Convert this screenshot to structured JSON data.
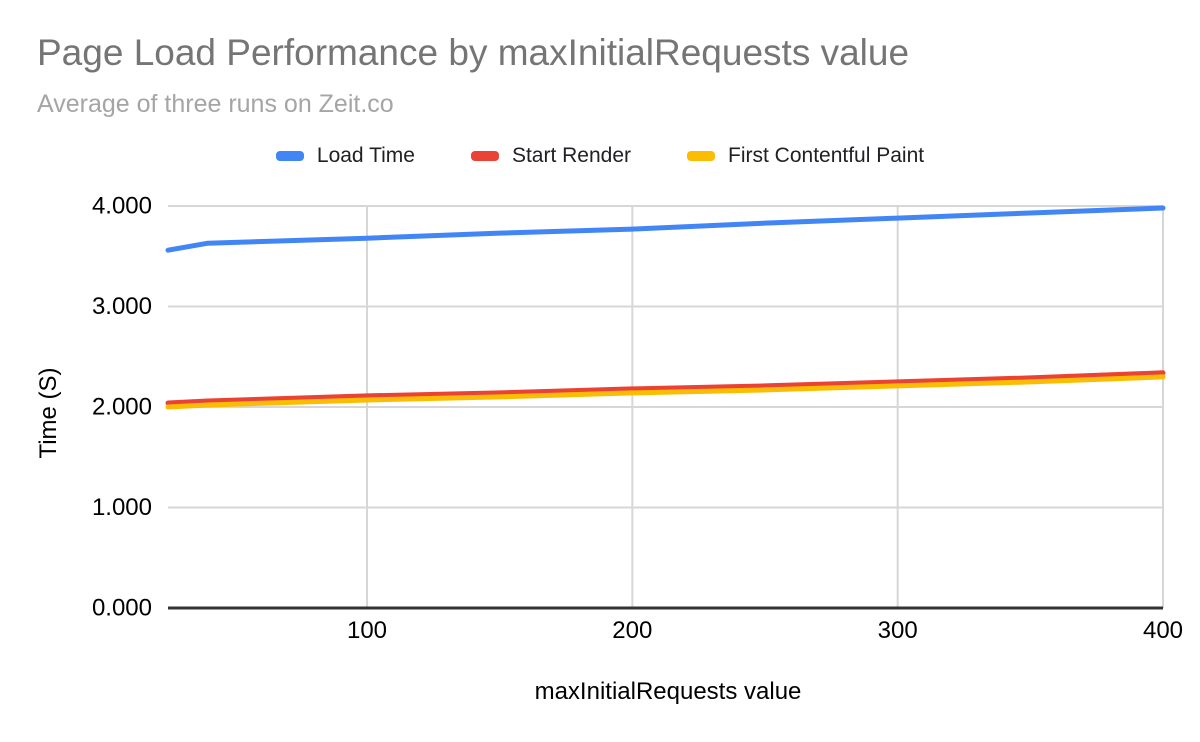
{
  "header": {
    "title": "Page Load Performance by maxInitialRequests value",
    "subtitle": "Average of three runs on Zeit.co"
  },
  "colors": {
    "title_text": "#757575",
    "subtitle_text": "#a5a5a5",
    "legend_text": "#202124",
    "tick_text": "#000000",
    "gridline": "#d7d7d7",
    "axis_baseline": "#333333",
    "background": "#ffffff"
  },
  "chart_data": {
    "type": "line",
    "title": "Page Load Performance by maxInitialRequests value",
    "subtitle": "Average of three runs on Zeit.co",
    "xlabel": "maxInitialRequests value",
    "ylabel": "Time (S)",
    "x": [
      25,
      40,
      100,
      150,
      200,
      250,
      300,
      350,
      400
    ],
    "series": [
      {
        "name": "Load Time",
        "color": "#4285f4",
        "values": [
          3.56,
          3.63,
          3.68,
          3.73,
          3.77,
          3.83,
          3.88,
          3.93,
          3.98
        ]
      },
      {
        "name": "Start Render",
        "color": "#ea4335",
        "values": [
          2.04,
          2.06,
          2.11,
          2.14,
          2.18,
          2.21,
          2.25,
          2.29,
          2.34
        ]
      },
      {
        "name": "First Contentful Paint",
        "color": "#fbbc04",
        "values": [
          2.0,
          2.02,
          2.07,
          2.1,
          2.14,
          2.17,
          2.21,
          2.25,
          2.3
        ]
      }
    ],
    "xlim": [
      25,
      400
    ],
    "ylim": [
      0,
      4
    ],
    "xticks": {
      "values": [
        100,
        200,
        300,
        400
      ],
      "labels": [
        "100",
        "200",
        "300",
        "400"
      ]
    },
    "yticks": {
      "values": [
        0,
        1,
        2,
        3,
        4
      ],
      "labels": [
        "0.000",
        "1.000",
        "2.000",
        "3.000",
        "4.000"
      ]
    },
    "legend_position": "top",
    "grid": true
  }
}
